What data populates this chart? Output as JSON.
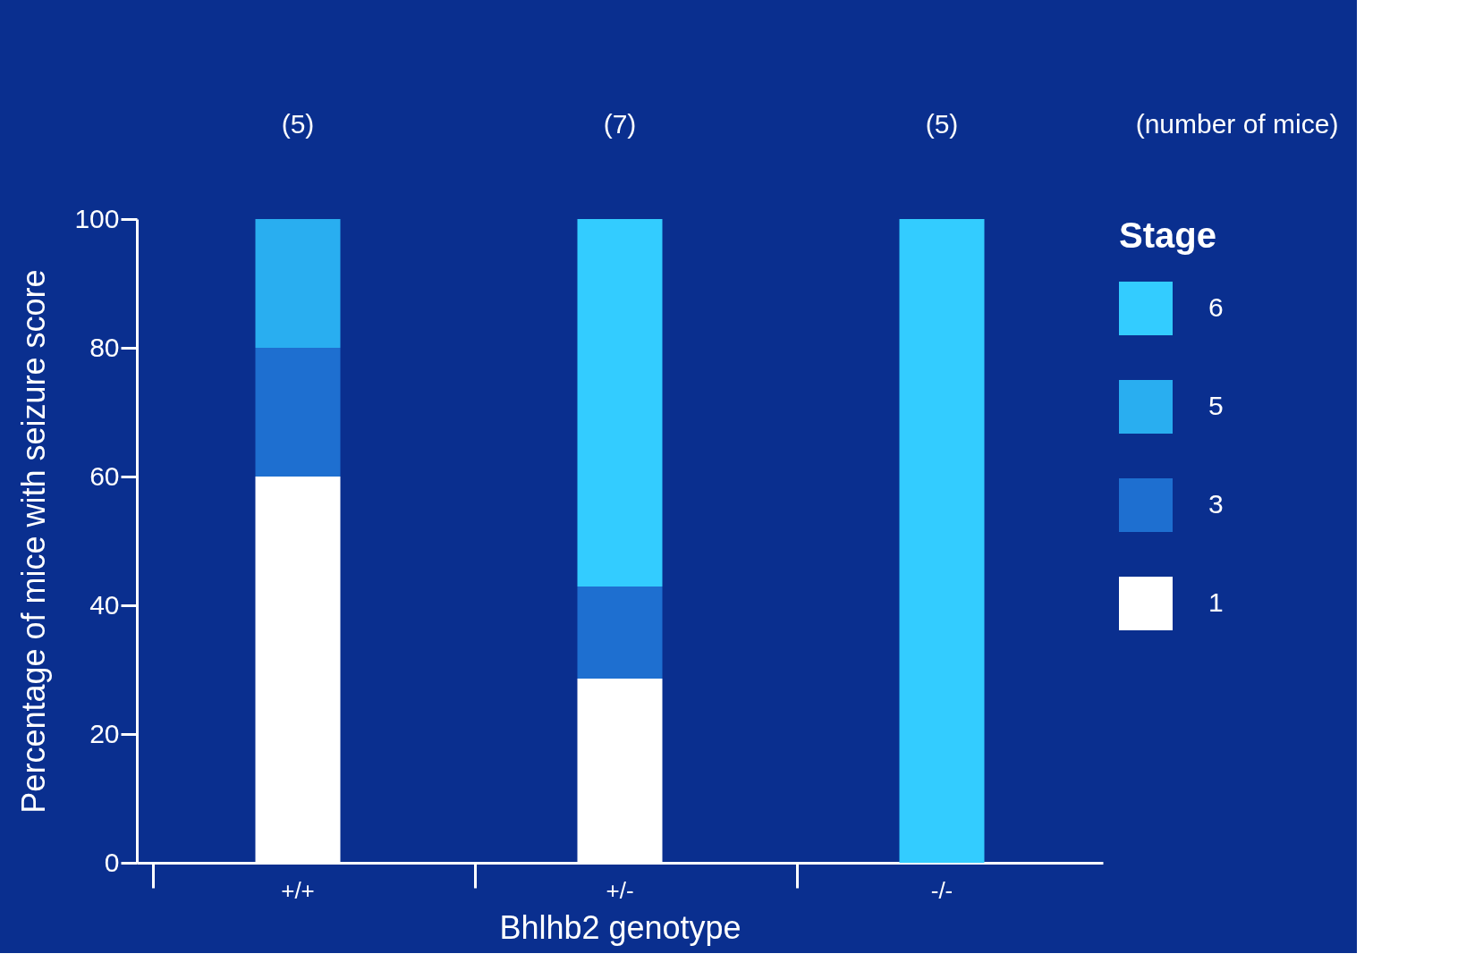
{
  "chart_data": {
    "type": "bar",
    "stacked": true,
    "ylabel": "Percentage of mice with seizure score",
    "xlabel": "Bhlhb2 genotype",
    "legend_title": "Stage",
    "legend": "right",
    "categories": [
      "+/+",
      "+/-",
      "-/-"
    ],
    "series": [
      {
        "name": "1",
        "color": "#ffffff",
        "values": [
          60,
          28.6,
          0
        ]
      },
      {
        "name": "3",
        "color": "#1e6fd0",
        "values": [
          20,
          14.3,
          0
        ]
      },
      {
        "name": "5",
        "color": "#29aef0",
        "values": [
          20,
          0,
          0
        ]
      },
      {
        "name": "6",
        "color": "#33ccff",
        "values": [
          0,
          57.1,
          100
        ]
      }
    ],
    "ylim": [
      0,
      100
    ],
    "yticks": [
      0,
      20,
      40,
      60,
      80,
      100
    ],
    "grid": false,
    "annotations": [
      "(5)",
      "(7)",
      "(5)",
      "(number of mice)"
    ]
  }
}
